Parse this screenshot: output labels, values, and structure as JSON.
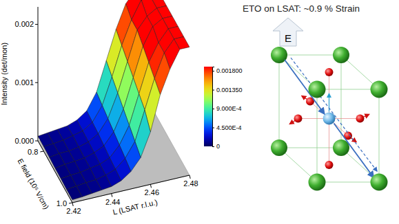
{
  "chart_data": {
    "type": "surface",
    "title": "ETO on LSAT: ~0.9 % Strain",
    "x_label": "L (LSAT r.l.u.)",
    "y_label": "E field (10⁵ V/cm)",
    "z_label": "Intensity (det/mon)",
    "annotations": [
      "E"
    ],
    "x": [
      2.42,
      2.425,
      2.43,
      2.435,
      2.44,
      2.445,
      2.45,
      2.455,
      2.46,
      2.465,
      2.47,
      2.475,
      2.48
    ],
    "y": [
      0.76,
      0.8,
      0.84,
      0.88,
      0.92,
      0.96,
      1.0
    ],
    "z": [
      [
        8e-05,
        0.0001,
        0.00012,
        0.00014,
        0.0002,
        0.00032,
        0.0006,
        0.0011,
        0.0016,
        0.002,
        0.0022,
        0.0022,
        0.0022
      ],
      [
        8e-05,
        9e-05,
        0.00011,
        0.00015,
        0.00019,
        0.0003,
        0.00055,
        0.001,
        0.0015,
        0.0019,
        0.0022,
        0.0022,
        0.0022
      ],
      [
        7e-05,
        0.0001,
        0.0001,
        0.00013,
        0.00018,
        0.00028,
        0.0005,
        0.0009,
        0.0014,
        0.0019,
        0.0021,
        0.0022,
        0.0022
      ],
      [
        6e-05,
        9e-05,
        0.0001,
        0.00012,
        0.00017,
        0.00025,
        0.00045,
        0.0008,
        0.0013,
        0.0018,
        0.0021,
        0.0022,
        0.0022
      ],
      [
        6e-05,
        8e-05,
        9e-05,
        0.00012,
        0.00015,
        0.00022,
        0.0004,
        0.0007,
        0.0012,
        0.0017,
        0.002,
        0.0022,
        0.0022
      ],
      [
        5e-05,
        7e-05,
        9e-05,
        0.0001,
        0.00014,
        0.0002,
        0.00035,
        0.0006,
        0.0011,
        0.0016,
        0.002,
        0.0022,
        0.0022
      ],
      [
        5e-05,
        6e-05,
        8e-05,
        0.0001,
        0.00012,
        0.00018,
        0.0003,
        0.0005,
        0.0009,
        0.0015,
        0.0019,
        0.0022,
        0.0022
      ]
    ],
    "xlim": [
      2.42,
      2.48
    ],
    "ylim": [
      0.76,
      1.0
    ],
    "zlim": [
      0,
      0.0023
    ],
    "xticks": [
      2.42,
      2.44,
      2.46,
      2.48
    ],
    "yticks": [
      0.8,
      {
        "value": 1.0,
        "label": "1.0"
      }
    ],
    "zticks": [
      {
        "value": 0,
        "label": "0.000"
      },
      0.001,
      0.002
    ],
    "colorbar": {
      "range": [
        0,
        0.0019
      ],
      "ticks": [
        0,
        {
          "value": 0.00045,
          "label": "4.500E-4"
        },
        {
          "value": 0.0009,
          "label": "9.000E-4"
        },
        {
          "value": 0.00135,
          "label": "0.001350"
        },
        {
          "value": 0.0018,
          "label": "0.001800"
        }
      ]
    }
  }
}
